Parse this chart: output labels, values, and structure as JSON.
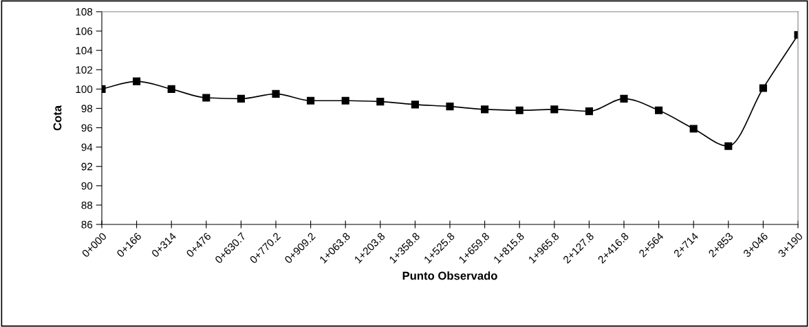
{
  "chart_data": {
    "type": "line",
    "xlabel": "Punto Observado",
    "ylabel": "Cota",
    "categories": [
      "0+000",
      "0+166",
      "0+314",
      "0+476",
      "0+630.7",
      "0+770.2",
      "0+909.2",
      "1+063.8",
      "1+203.8",
      "1+358.8",
      "1+525.8",
      "1+659.8",
      "1+815.8",
      "1+965.8",
      "2+127.8",
      "2+416.8",
      "2+564",
      "2+714",
      "2+853",
      "3+046",
      "3+190"
    ],
    "series": [
      {
        "color": "#000000",
        "values": [
          100,
          100.8,
          100,
          99.1,
          99,
          99.5,
          98.8,
          98.8,
          98.7,
          98.4,
          98.2,
          97.9,
          97.8,
          97.9,
          97.7,
          99,
          97.8,
          95.9,
          94.1,
          100.1,
          105.6
        ]
      }
    ],
    "ylim": [
      86,
      108
    ],
    "yticks": [
      86,
      88,
      90,
      92,
      94,
      96,
      98,
      100,
      102,
      104,
      106,
      108
    ],
    "marker": "square",
    "line_style": "solid",
    "grid": false,
    "legend": false
  }
}
